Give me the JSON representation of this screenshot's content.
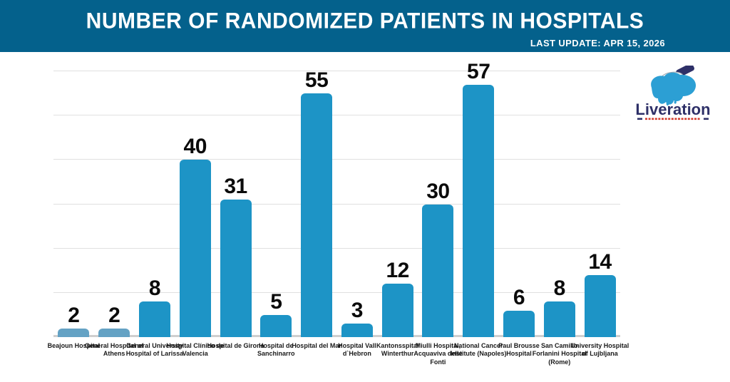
{
  "header": {
    "title": "NUMBER OF RANDOMIZED PATIENTS IN HOSPITALS",
    "last_update": "LAST UPDATE: APR 15, 2026"
  },
  "logo": {
    "wordmark": "Liveration"
  },
  "colors": {
    "header_bg": "#04618c",
    "bar_primary": "#1d94c6",
    "bar_muted": "#64a2c4",
    "gridline": "#e0e0e0",
    "baseline": "#cfcfcf",
    "value_text": "#0b0b0b",
    "label_text": "#1a1a1a",
    "logo_navy": "#2e3068",
    "logo_blue": "#2c9fd4",
    "logo_red": "#d23b2e"
  },
  "chart_data": {
    "type": "bar",
    "title": "NUMBER OF RANDOMIZED PATIENTS IN HOSPITALS",
    "categories": [
      "Beajoun Hospital",
      "General Hospital of Athens",
      "General University Hospital of Larissa",
      "Hospital Clínico de Valencia",
      "Hospital de Girona",
      "Hospital de Sanchinarro",
      "Hospital del Mar",
      "Hospital Vall d`Hebron",
      "Kantonsspital Winterthur",
      "Miulli Hospital, Acquaviva delle Fonti",
      "National Cancer Institute (Napoles)",
      "Paul Brousse Hospital",
      "San Camillo Forlanini Hospital (Rome)",
      "University Hospital of Lujbljana"
    ],
    "values": [
      2,
      2,
      8,
      40,
      31,
      5,
      55,
      3,
      12,
      30,
      57,
      6,
      8,
      14
    ],
    "muted_bar_indices": [
      0,
      1
    ],
    "xlabel": "",
    "ylabel": "",
    "ylim": [
      0,
      60
    ],
    "gridline_step": 10,
    "grid": true,
    "y_tick_labels_shown": false,
    "value_labels_shown": true,
    "legend": "none"
  }
}
